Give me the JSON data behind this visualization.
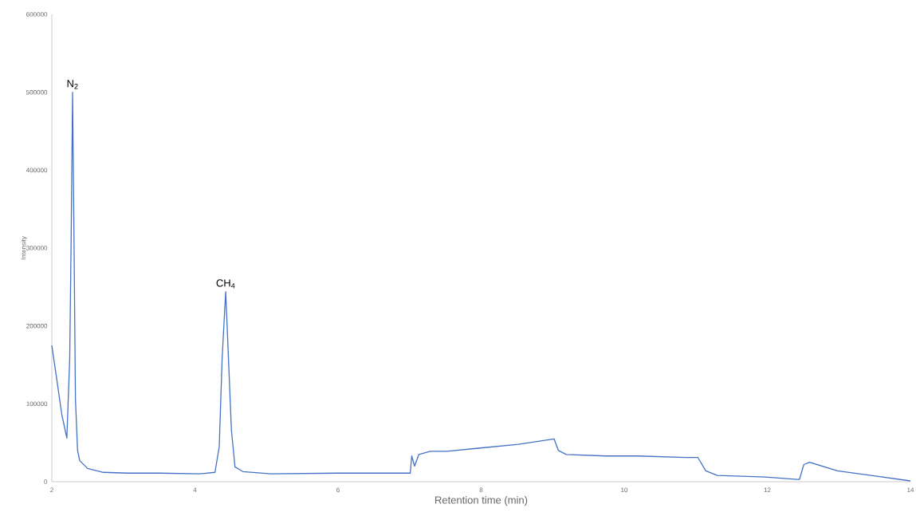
{
  "chart_data": {
    "type": "line",
    "xlabel": "Retention time (min)",
    "ylabel": "Intensity",
    "xlim": [
      2,
      14
    ],
    "ylim": [
      0,
      600000
    ],
    "xticks": [
      2,
      4,
      6,
      8,
      10,
      12,
      14
    ],
    "yticks": [
      0,
      100000,
      200000,
      300000,
      400000,
      500000,
      600000
    ],
    "x": [
      2.0,
      2.06,
      2.14,
      2.21,
      2.25,
      2.27,
      2.29,
      2.31,
      2.33,
      2.36,
      2.39,
      2.5,
      2.72,
      3.06,
      3.5,
      4.06,
      4.28,
      4.34,
      4.38,
      4.43,
      4.46,
      4.51,
      4.56,
      4.67,
      5.06,
      6.0,
      7.01,
      7.03,
      7.07,
      7.13,
      7.29,
      7.52,
      7.96,
      8.52,
      9.02,
      9.08,
      9.19,
      9.74,
      10.19,
      10.86,
      11.03,
      11.14,
      11.3,
      11.97,
      12.42,
      12.45,
      12.51,
      12.59,
      12.98,
      13.53,
      14.0
    ],
    "series": [
      {
        "color": "#4472c4",
        "values": [
          175000,
          137000,
          86000,
          56000,
          158000,
          311000,
          500000,
          311000,
          106000,
          40000,
          27000,
          17000,
          12000,
          11000,
          11000,
          10000,
          12000,
          45000,
          158000,
          244000,
          178000,
          66000,
          19000,
          13000,
          10000,
          11000,
          11000,
          33000,
          20000,
          35000,
          39000,
          39000,
          43000,
          48000,
          55000,
          40000,
          35000,
          33000,
          33000,
          31000,
          31000,
          14000,
          8000,
          6000,
          3000,
          3000,
          22000,
          25000,
          14000,
          7000,
          1000
        ]
      }
    ],
    "annotations": [
      {
        "text": "N$_{2}$",
        "x": 2.29,
        "y": 500000
      },
      {
        "text": "CH$_{4}$",
        "x": 4.43,
        "y": 244000
      }
    ]
  }
}
